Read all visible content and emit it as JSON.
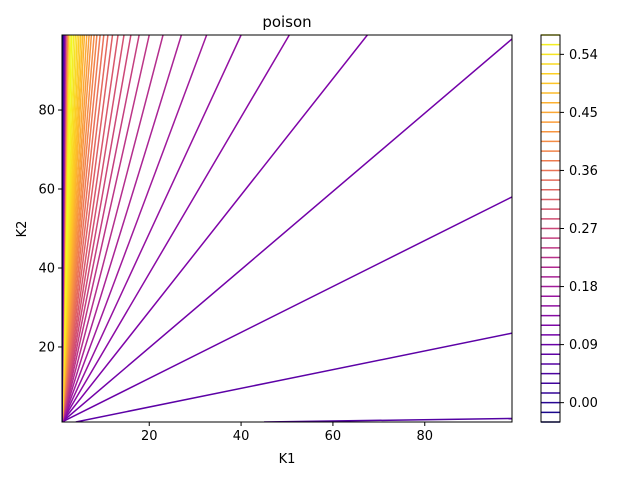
{
  "chart_data": {
    "type": "contour",
    "title": "poison",
    "xlabel": "K1",
    "ylabel": "K2",
    "xlim": [
      1,
      99
    ],
    "ylim": [
      1,
      99
    ],
    "x_ticks": [
      20,
      40,
      60,
      80
    ],
    "y_ticks": [
      20,
      40,
      60,
      80
    ],
    "colormap": "plasma",
    "levels": [
      -0.03,
      -0.015,
      0.0,
      0.015,
      0.03,
      0.045,
      0.06,
      0.075,
      0.09,
      0.105,
      0.12,
      0.135,
      0.15,
      0.165,
      0.18,
      0.195,
      0.21,
      0.225,
      0.24,
      0.255,
      0.27,
      0.285,
      0.3,
      0.315,
      0.33,
      0.345,
      0.36,
      0.375,
      0.39,
      0.405,
      0.42,
      0.435,
      0.45,
      0.465,
      0.48,
      0.495,
      0.51,
      0.525,
      0.54,
      0.555,
      0.57
    ],
    "colorbar_ticks": [
      0.0,
      0.09,
      0.18,
      0.27,
      0.36,
      0.45,
      0.54
    ],
    "colorbar_tick_labels": [
      "0.00",
      "0.09",
      "0.18",
      "0.27",
      "0.36",
      "0.45",
      "0.54"
    ],
    "contour_lines": [
      {
        "start": [
          45,
          1
        ],
        "end": [
          99,
          1.9
        ],
        "color": "#5302a3"
      },
      {
        "start": [
          4,
          1
        ],
        "end": [
          99,
          23.5
        ],
        "color": "#5c01a6"
      },
      {
        "start": [
          1,
          1
        ],
        "end": [
          99,
          58
        ],
        "color": "#6a00a8"
      },
      {
        "start": [
          1,
          1
        ],
        "end": [
          99,
          98
        ],
        "color": "#7201a8"
      },
      {
        "start": [
          1,
          1
        ],
        "end": [
          67.5,
          99
        ],
        "color": "#7e03a8"
      },
      {
        "start": [
          1,
          1
        ],
        "end": [
          50.5,
          99
        ],
        "color": "#8b0aa5"
      },
      {
        "start": [
          1,
          1
        ],
        "end": [
          40,
          99
        ],
        "color": "#9511a1"
      },
      {
        "start": [
          1,
          1
        ],
        "end": [
          32.5,
          99
        ],
        "color": "#a01a9c"
      },
      {
        "start": [
          1,
          1
        ],
        "end": [
          27,
          99
        ],
        "color": "#aa2395"
      },
      {
        "start": [
          1,
          1
        ],
        "end": [
          23,
          99
        ],
        "color": "#b42e8d"
      },
      {
        "start": [
          1,
          1
        ],
        "end": [
          20,
          99
        ],
        "color": "#bc3587"
      },
      {
        "start": [
          1,
          1
        ],
        "end": [
          17.8,
          99
        ],
        "color": "#c43e7f"
      },
      {
        "start": [
          1,
          1
        ],
        "end": [
          16,
          99
        ],
        "color": "#cc4778"
      },
      {
        "start": [
          1,
          1
        ],
        "end": [
          14.5,
          99
        ],
        "color": "#d35171"
      },
      {
        "start": [
          1,
          1
        ],
        "end": [
          13.2,
          99
        ],
        "color": "#d8576b"
      },
      {
        "start": [
          1,
          1
        ],
        "end": [
          12,
          99
        ],
        "color": "#de5f65"
      },
      {
        "start": [
          1,
          1
        ],
        "end": [
          11,
          99
        ],
        "color": "#e4695e"
      },
      {
        "start": [
          1,
          1
        ],
        "end": [
          10.1,
          99
        ],
        "color": "#e97158"
      },
      {
        "start": [
          1,
          1
        ],
        "end": [
          9.3,
          99
        ],
        "color": "#ed7953"
      },
      {
        "start": [
          1,
          1
        ],
        "end": [
          8.6,
          99
        ],
        "color": "#f1834c"
      },
      {
        "start": [
          1,
          1
        ],
        "end": [
          8.0,
          99
        ],
        "color": "#f48c47"
      },
      {
        "start": [
          1,
          1
        ],
        "end": [
          7.4,
          99
        ],
        "color": "#f79441"
      },
      {
        "start": [
          1,
          1
        ],
        "end": [
          6.9,
          99
        ],
        "color": "#f99e3b"
      },
      {
        "start": [
          1,
          1
        ],
        "end": [
          6.4,
          99
        ],
        "color": "#fba835"
      },
      {
        "start": [
          1,
          1
        ],
        "end": [
          5.9,
          99
        ],
        "color": "#fcb130"
      },
      {
        "start": [
          1,
          1
        ],
        "end": [
          5.5,
          99
        ],
        "color": "#fdbb2b"
      },
      {
        "start": [
          1,
          1
        ],
        "end": [
          5.1,
          99
        ],
        "color": "#fdc527"
      },
      {
        "start": [
          1,
          1
        ],
        "end": [
          4.7,
          99
        ],
        "color": "#fccd25"
      },
      {
        "start": [
          1,
          1
        ],
        "end": [
          4.3,
          99
        ],
        "color": "#fad824"
      },
      {
        "start": [
          1,
          1
        ],
        "end": [
          3.9,
          99
        ],
        "color": "#f7e225"
      },
      {
        "start": [
          1,
          1
        ],
        "end": [
          3.5,
          99
        ],
        "color": "#f4ed27"
      },
      {
        "start": [
          1,
          1
        ],
        "end": [
          3.1,
          99
        ],
        "color": "#f0f921"
      },
      {
        "start": [
          1,
          1
        ],
        "end": [
          2.75,
          99
        ],
        "color": "#f4ed27"
      },
      {
        "start": [
          1,
          1
        ],
        "end": [
          2.4,
          99
        ],
        "color": "#fdbb2b"
      },
      {
        "start": [
          1,
          1
        ],
        "end": [
          2.1,
          99
        ],
        "color": "#e97158"
      },
      {
        "start": [
          1,
          1
        ],
        "end": [
          1.8,
          99
        ],
        "color": "#b42e8d"
      },
      {
        "start": [
          1,
          1
        ],
        "end": [
          1.55,
          99
        ],
        "color": "#7e03a8"
      },
      {
        "start": [
          1,
          1
        ],
        "end": [
          1.3,
          99
        ],
        "color": "#4c02a1"
      },
      {
        "start": [
          1,
          1
        ],
        "end": [
          1.1,
          99
        ],
        "color": "#0d0887"
      }
    ]
  }
}
